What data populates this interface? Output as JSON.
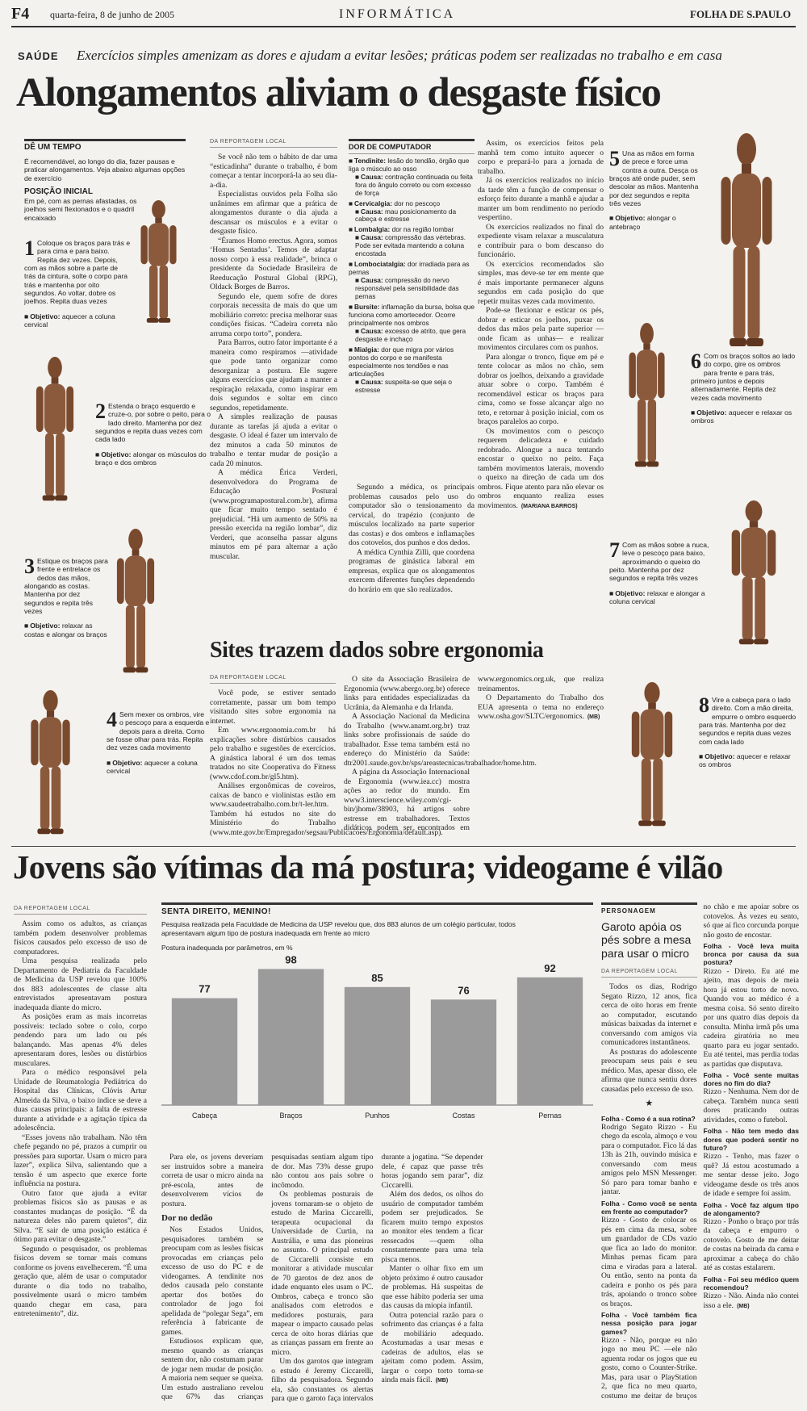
{
  "header": {
    "page": "F4",
    "date": "quarta-feira, 8 de junho de 2005",
    "section": "INFORMÁTICA",
    "paper": "FOLHA DE S.PAULO"
  },
  "article1": {
    "kicker": "SAÚDE",
    "deck": "Exercícios simples amenizam as dores e ajudam a evitar lesões; práticas podem ser realizadas no trabalho e em casa",
    "title": "Alongamentos aliviam o desgaste físico",
    "sidebar": {
      "title": "DÊ UM TEMPO",
      "intro": "É recomendável, ao longo do dia, fazer pausas e praticar alongamentos. Veja abaixo algumas opções de exercício",
      "position_title": "POSIÇÃO INICIAL",
      "position_text": "Em pé, com as pernas afastadas, os joelhos semi flexionados e o quadril encaixado"
    },
    "objective_label": "Objetivo:",
    "steps": [
      {
        "number": 1,
        "text": "Coloque os braços para trás e para cima e para baixo. Repita dez vezes. Depois, com as mãos sobre a parte de trás da cintura, solte o corpo para trás e mantenha por oito segundos. Ao voltar, dobre os joelhos. Repita duas vezes",
        "objective": "aquecer a coluna cervical"
      },
      {
        "number": 2,
        "text": "Estenda o braço esquerdo e cruze-o, por sobre o peito, para o lado direito. Mantenha por dez segundos e repita duas vezes com cada lado",
        "objective": "alongar os músculos do braço e dos ombros"
      },
      {
        "number": 3,
        "text": "Estique os braços para frente e entrelace os dedos das mãos, alongando as costas. Mantenha por dez segundos e repita três vezes",
        "objective": "relaxar as costas e alongar os braços"
      },
      {
        "number": 4,
        "text": "Sem mexer os ombros, vire o pescoço para a esquerda e depois para a direita. Como se fosse olhar para trás. Repita dez vezes cada movimento",
        "objective": "aquecer a coluna cervical"
      },
      {
        "number": 5,
        "text": "Una as mãos em forma de prece e force uma contra a outra. Desça os braços até onde puder, sem descolar as mãos. Mantenha por dez segundos e repita três vezes",
        "objective": "alongar o antebraço"
      },
      {
        "number": 6,
        "text": "Com os braços soltos ao lado do corpo, gire os ombros para frente e para trás, primeiro juntos e depois alternadamente. Repita dez vezes cada movimento",
        "objective": "aquecer e relaxar os ombros"
      },
      {
        "number": 7,
        "text": "Com as mãos sobre a nuca, leve o pescoço para baixo, aproximando o queixo do peito. Mantenha por dez segundos e repita três vezes",
        "objective": "relaxar e alongar a coluna cervical"
      },
      {
        "number": 8,
        "text": "Vire a cabeça para o lado direito. Com a mão direita, empurre o ombro esquerdo para trás. Mantenha por dez segundos e repita duas vezes com cada lado",
        "objective": "aquecer e relaxar os ombros"
      }
    ],
    "byline": "DA REPORTAGEM LOCAL",
    "body": [
      "Se você não tem o hábito de dar uma “esticadinha” durante o trabalho, é bom começar a tentar incorporá-la ao seu dia-a-dia.",
      "Especialistas ouvidos pela Folha são unânimes em afirmar que a prática de alongamentos durante o dia ajuda a descansar os músculos e a evitar o desgaste físico.",
      "“Éramos Homo erectus. Agora, somos ‘Homus Sentadus’. Temos de adaptar nosso corpo à essa realidade”, brinca o presidente da Sociedade Brasileira de Reeducação Postural Global (RPG), Oldack Borges de Barros.",
      "Segundo ele, quem sofre de dores corporais necessita de mais do que um mobiliário correto: precisa melhorar suas condições físicas. “Cadeira correta não arruma corpo torto”, pondera.",
      "Para Barros, outro fator importante é a maneira como respiramos —atividade que pode tanto organizar como desorganizar a postura. Ele sugere alguns exercícios que ajudam a manter a respiração relaxada, como inspirar em dois segundos e soltar em cinco segundos, repetidamente.",
      "A simples realização de pausas durante as tarefas já ajuda a evitar o desgaste. O ideal é fazer um intervalo de dez minutos a cada 50 minutos de trabalho e tentar mudar de posição a cada 20 minutos.",
      "A médica Érica Verderi, desenvolvedora do Programa de Educação Postural (www.programapostural.com.br), afirma que ficar muito tempo sentado é prejudicial. “Há um aumento de 50% na pressão exercida na região lombar”, diz Verderi, que aconselha passar alguns minutos em pé para alternar a ação muscular.",
      "Segundo a médica, os principais problemas causados pelo uso do computador são o tensionamento da cervical, do trapézio (conjunto de músculos localizado na parte superior das costas) e dos ombros e inflamações dos cotovelos, dos punhos e dos dedos.",
      "A médica Cynthia Zilli, que coordena programas de ginástica laboral em empresas, explica que os alongamentos exercem diferentes funções dependendo do horário em que são realizados.",
      "Assim, os exercícios feitos pela manhã tem como intuito aquecer o corpo e prepará-lo para a jornada de trabalho.",
      "Já os exercícios realizados no início da tarde têm a função de compensar o esforço feito durante a manhã e ajudar a manter um bom rendimento no período vespertino.",
      "Os exercícios realizados no final do expediente visam relaxar a musculatura e contribuir para o bom descanso do funcionário.",
      "Os exercícios recomendados são simples, mas deve-se ter em mente que é mais importante permanecer alguns segundos em cada posição do que repetir muitas vezes cada movimento.",
      "Pode-se flexionar e esticar os pés, dobrar e esticar os joelhos, puxar os dedos das mãos pela parte superior —onde ficam as unhas— e realizar movimentos circulares com os punhos.",
      "Para alongar o tronco, fique em pé e tente colocar as mãos no chão, sem dobrar os joelhos, deixando a gravidade atuar sobre o corpo. Também é recomendável esticar os braços para cima, como se fosse alcançar algo no teto, e retornar à posição inicial, com os braços paralelos ao corpo.",
      "Os movimentos com o pescoço requerem delicadeza e cuidado redobrado. Alongue a nuca tentando encostar o queixo no peito. Faça também movimentos laterais, movendo o queixo na direção de cada um dos ombros. Fique atento para não elevar os ombros enquanto realiza esses movimentos."
    ],
    "signature": "(MARIANA BARROS)",
    "box": {
      "title": "DOR DE COMPUTADOR",
      "cause_label": "Causa:",
      "items": [
        {
          "term": "Tendinite:",
          "desc": "lesão do tendão, órgão que liga o músculo ao osso",
          "cause": "contração continuada ou feita fora do ângulo correto ou com excesso de força"
        },
        {
          "term": "Cervicalgia:",
          "desc": "dor no pescoço",
          "cause": "mau posicionamento da cabeça e estresse"
        },
        {
          "term": "Lombalgia:",
          "desc": "dor na região lombar",
          "cause": "compressão das vértebras. Pode ser evitada mantendo a coluna encostada"
        },
        {
          "term": "Lombociatalgia:",
          "desc": "dor irradiada para as pernas",
          "cause": "compressão do nervo responsável pela sensibilidade das pernas"
        },
        {
          "term": "Bursite:",
          "desc": "inflamação da bursa, bolsa que funciona como amortecedor. Ocorre principalmente nos ombros",
          "cause": "excesso de atrito, que gera desgaste e inchaço"
        },
        {
          "term": "Mialgia:",
          "desc": "dor que migra por vários pontos do corpo e se manifesta especialmente nos tendões e nas articulações",
          "cause": "suspeita-se que seja o estresse"
        }
      ]
    }
  },
  "article2": {
    "title": "Sites trazem dados sobre ergonomia",
    "byline": "DA REPORTAGEM LOCAL",
    "body": [
      "Você pode, se estiver sentado corretamente, passar um bom tempo visitando sites sobre ergonomia na internet.",
      "Em www.ergonomia.com.br há explicações sobre distúrbios causados pelo trabalho e sugestões de exercícios. A ginástica laboral é um dos temas tratados no site Cooperativa do Fitness (www.cdof.com.br/gl5.htm).",
      "Análises ergonômicas de coveiros, caixas de banco e violinistas estão em www.saudeetrabalho.com.br/t-ler.htm. Também há estudos no site do Ministério do Trabalho (www.mte.gov.br/Empregador/segsau/Publicacoes/Ergonomia/default.asp).",
      "O site da Associação Brasileira de Ergonomia (www.abergo.org.br) oferece links para entidades especializadas da Ucrânia, da Alemanha e da Irlanda.",
      "A Associação Nacional da Medicina do Trabalho (www.anamt.org.br) traz links sobre profissionais de saúde do trabalhador. Esse tema também está no endereço do Ministério da Saúde: dtr2001.saude.gov.br/sps/areastecnicas/trabalhador/home.htm.",
      "A página da Associação Internacional de Ergonomia (www.iea.cc) mostra ações ao redor do mundo. Em www3.interscience.wiley.com/cgi-bin/jhome/38903, há artigos sobre estresse em trabalhadores. Textos didáticos podem ser encontrados em www.ergonomics.org.uk, que realiza treinamentos.",
      "O Departamento do Trabalho dos EUA apresenta o tema no endereço www.osha.gov/SLTC/ergonomics."
    ],
    "signature": "(MB)"
  },
  "article3": {
    "title": "Jovens são vítimas da má postura; videogame é vilão",
    "byline": "DA REPORTAGEM LOCAL",
    "body": [
      "Assim como os adultos, as crianças também podem desenvolver problemas físicos causados pelo excesso de uso de computadores.",
      "Uma pesquisa realizada pelo Departamento de Pediatria da Faculdade de Medicina da USP revelou que 100% dos 883 adolescentes de classe alta entrevistados apresentavam postura inadequada diante do micro.",
      "As posições eram as mais incorretas possíveis: teclado sobre o colo, corpo pendendo para um lado ou pés balançando. Mas apenas 4% deles apresentaram dores, lesões ou distúrbios musculares.",
      "Para o médico responsável pela Unidade de Reumatologia Pediátrica do Hospital das Clínicas, Clóvis Artur Almeida da Silva, o baixo índice se deve a duas causas principais: a falta de estresse durante a atividade e a agitação típica da adolescência.",
      "“Esses jovens não trabalham. Não têm chefe pegando no pé, prazos a cumprir ou pressões para suportar. Usam o micro para lazer”, explica Silva, salientando que a tensão é um aspecto que exerce forte influência na postura.",
      "Outro fator que ajuda a evitar problemas físicos são as pausas e as constantes mudanças de posição. “É da natureza deles não parem quietos”, diz Silva. “E sair de uma posição estática é ótimo para evitar o desgaste.”",
      "Segundo o pesquisador, os problemas físicos devem se tornar mais comuns conforme os jovens envelhecerem. “É uma geração que, além de usar o computador durante o dia todo no trabalho, possivelmente usará o micro também quando chegar em casa, para entretenimento”, diz.",
      "Para ele, os jovens deveriam ser instruídos sobre a maneira correta de usar o micro ainda na pré-escola, antes de desenvolverem vícios de postura."
    ],
    "subhead": "Dor no dedão",
    "body2": [
      "Nos Estados Unidos, pesquisadores também se preocupam com as lesões físicas provocadas em crianças pelo excesso de uso do PC e de videogames. A tendinite nos dedos causada pelo constante apertar dos botões do controlador de jogo foi apelidada de “polegar Sega”, em referência à fabricante de games.",
      "Estudiosos explicam que, mesmo quando as crianças sentem dor, não costumam parar de jogar nem mudar de posição. A maioria nem sequer se queixa. Um estudo australiano revelou que 67% das crianças pesquisadas sentiam algum tipo de dor. Mas 73% desse grupo não contou aos pais sobre o incômodo.",
      "Os problemas posturais de jovens tornaram-se o objeto de estudo de Marina Ciccarelli, terapeuta ocupacional da Universidade de Curtin, na Austrália, e uma das pioneiras no assunto. O principal estudo de Ciccarelli consiste em monitorar a atividade muscular de 70 garotos de dez anos de idade enquanto eles usam o PC. Ombros, cabeça e tronco são analisados com eletrodos e medidores posturais, para mapear o impacto causado pelas cerca de oito horas diárias que as crianças passam em frente ao micro.",
      "Um dos garotos que integram o estudo é Jeremy Ciccarelli, filho da pesquisadora. Segundo ela, são constantes os alertas para que o garoto faça intervalos durante a jogatina. “Se depender dele, é capaz que passe três horas jogando sem parar”, diz Ciccarelli.",
      "Além dos dedos, os olhos do usuário de computador também podem ser prejudicados. Se ficarem muito tempo expostos ao monitor eles tendem a ficar ressecados —quem olha constantemente para uma tela pisca menos.",
      "Manter o olhar fixo em um objeto próximo é outro causador de problemas. Há suspeitas de que esse hábito poderia ser uma das causas da miopia infantil.",
      "Outra potencial razão para o sofrimento das crianças é a falta de mobiliário adequado. Acostumadas a usar mesas e cadeiras de adultos, elas se ajeitam como podem. Assim, largar o corpo torto torna-se ainda mais fácil."
    ],
    "signature": "(MB)",
    "profile": {
      "label": "PERSONAGEM",
      "title": "Garoto apóia os pés sobre a mesa para usar o micro",
      "byline": "DA REPORTAGEM LOCAL",
      "body": [
        "Todos os dias, Rodrigo Segato Rizzo, 12 anos, fica cerca de oito horas em frente ao computador, escutando músicas baixadas da internet e conversando com amigos via comunicadores instantâneos.",
        "As posturas do adolescente preocupam seus pais e seu médico. Mas, apesar disso, ele afirma que nunca sentiu dores causadas pelo excesso de uso."
      ],
      "qa": [
        {
          "q": "Folha - Como é a sua rotina?",
          "a": "Rodrigo Segato Rizzo - Eu chego da escola, almoço e vou para o computador. Fico lá das 13h às 21h, ouvindo música e conversando com meus amigos pelo MSN Messenger. Só paro para tomar banho e jantar."
        },
        {
          "q": "Folha - Como você se senta em frente ao computador?",
          "a": "Rizzo - Gosto de colocar os pés em cima da mesa, sobre um guardador de CDs vazio que fica ao lado do monitor. Minhas pernas ficam para cima e viradas para a lateral. Ou então, sento na ponta da cadeira e ponho os pés para trás, apoiando o tronco sobre os braços."
        },
        {
          "q": "Folha - Você também fica nessa posição para jogar games?",
          "a": "Rizzo - Não, porque eu não jogo no meu PC —ele não aguenta rodar os jogos que eu gosto, como o Counter-Strike. Mas, para usar o PlayStation 2, que fica no meu quarto, costumo me deitar de bruços no chão e me apoiar sobre os cotovelos. Às vezes eu sento, só que aí fico corcunda porque não gosto de encostar."
        },
        {
          "q": "Folha - Você leva muita bronca por causa da sua postura?",
          "a": "Rizzo - Direto. Eu até me ajeito, mas depois de meia hora já estou torto de novo. Quando vou ao médico é a mesma coisa. Só sento direito por uns quatro dias depois da consulta. Minha irmã pôs uma cadeira giratória no meu quarto para eu jogar sentado. Eu até tentei, mas perdia todas as partidas que disputava."
        },
        {
          "q": "Folha - Você sente muitas dores no fim do dia?",
          "a": "Rizzo - Nenhuma. Nem dor de cabeça. Também nunca senti dores praticando outras atividades, como o futebol."
        },
        {
          "q": "Folha - Não tem medo das dores que poderá sentir no futuro?",
          "a": "Rizzo - Tenho, mas fazer o quê? Já estou acostumado a me sentar desse jeito. Jogo videogame desde os três anos de idade e sempre foi assim."
        },
        {
          "q": "Folha - Você faz algum tipo de alongamento?",
          "a": "Rizzo - Ponho o braço por trás da cabeça e empurro o cotovelo. Gosto de me deitar de costas na beirada da cama e aproximar a cabeça do chão até as costas estalarem."
        },
        {
          "q": "Folha - Foi seu médico quem recomendou?",
          "a": "Rizzo - Não. Ainda não contei isso a ele."
        }
      ],
      "signature": "(MB)"
    }
  },
  "chart_data": {
    "type": "bar",
    "title": "SENTA DIREITO, MENINO!",
    "subtitle": "Pesquisa realizada pela Faculdade de Medicina da USP revelou que, dos 883 alunos de um colégio particular, todos apresentavam algum tipo de postura inadequada em frente ao micro",
    "y_label": "Postura inadequada por parâmetros, em %",
    "categories": [
      "Cabeça",
      "Braços",
      "Punhos",
      "Costas",
      "Pernas"
    ],
    "values": [
      77,
      98,
      85,
      76,
      92
    ],
    "color": "#9b9b9b",
    "ylim": [
      0,
      100
    ]
  }
}
